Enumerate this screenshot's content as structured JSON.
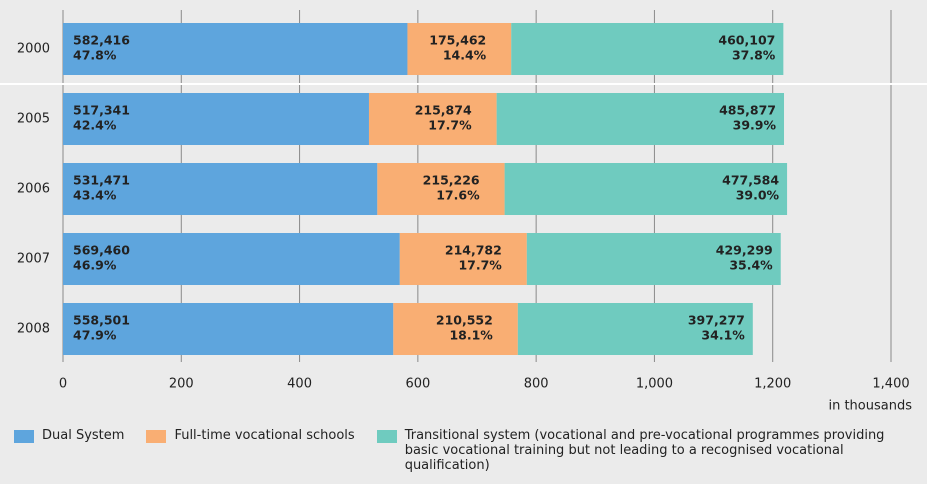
{
  "chart_data": {
    "type": "stacked-bar-horizontal",
    "categories": [
      "2000",
      "2005",
      "2006",
      "2007",
      "2008"
    ],
    "series": [
      {
        "name": "Dual System",
        "color": "#5ea5dd",
        "values": [
          582.416,
          517.341,
          531.471,
          569.46,
          558.501
        ],
        "value_labels": [
          "582,416",
          "517,341",
          "531,471",
          "569,460",
          "558,501"
        ],
        "shares": [
          47.8,
          42.4,
          43.4,
          46.9,
          47.9
        ],
        "share_labels": [
          "47.8%",
          "42.4%",
          "43.4%",
          "46.9%",
          "47.9%"
        ]
      },
      {
        "name": "Full-time vocational schools",
        "color": "#f9ae73",
        "values": [
          175.462,
          215.874,
          215.226,
          214.782,
          210.552
        ],
        "value_labels": [
          "175,462",
          "215,874",
          "215,226",
          "214,782",
          "210,552"
        ],
        "shares": [
          14.4,
          17.7,
          17.6,
          17.7,
          18.1
        ],
        "share_labels": [
          "14.4%",
          "17.7%",
          "17.6%",
          "17.7%",
          "18.1%"
        ]
      },
      {
        "name": "Transitional system (vocational and pre-vocational programmes providing basic vocational training but not leading to a recognised vocational qualification)",
        "color": "#6fcbbf",
        "values": [
          460.107,
          485.877,
          477.584,
          429.299,
          397.277
        ],
        "value_labels": [
          "460,107",
          "485,877",
          "477,584",
          "429,299",
          "397,277"
        ],
        "shares": [
          37.8,
          39.9,
          39.0,
          35.4,
          34.1
        ],
        "share_labels": [
          "37.8%",
          "39.9%",
          "39.0%",
          "35.4%",
          "34.1%"
        ]
      }
    ],
    "xlabel": "in thousands",
    "xlim": [
      0,
      1400
    ],
    "xticks": [
      0,
      200,
      400,
      600,
      800,
      {
        "value": 1000,
        "label": "1,000"
      },
      {
        "value": 1200,
        "label": "1,200"
      },
      {
        "value": 1400,
        "label": "1,400"
      }
    ],
    "grid": true
  }
}
